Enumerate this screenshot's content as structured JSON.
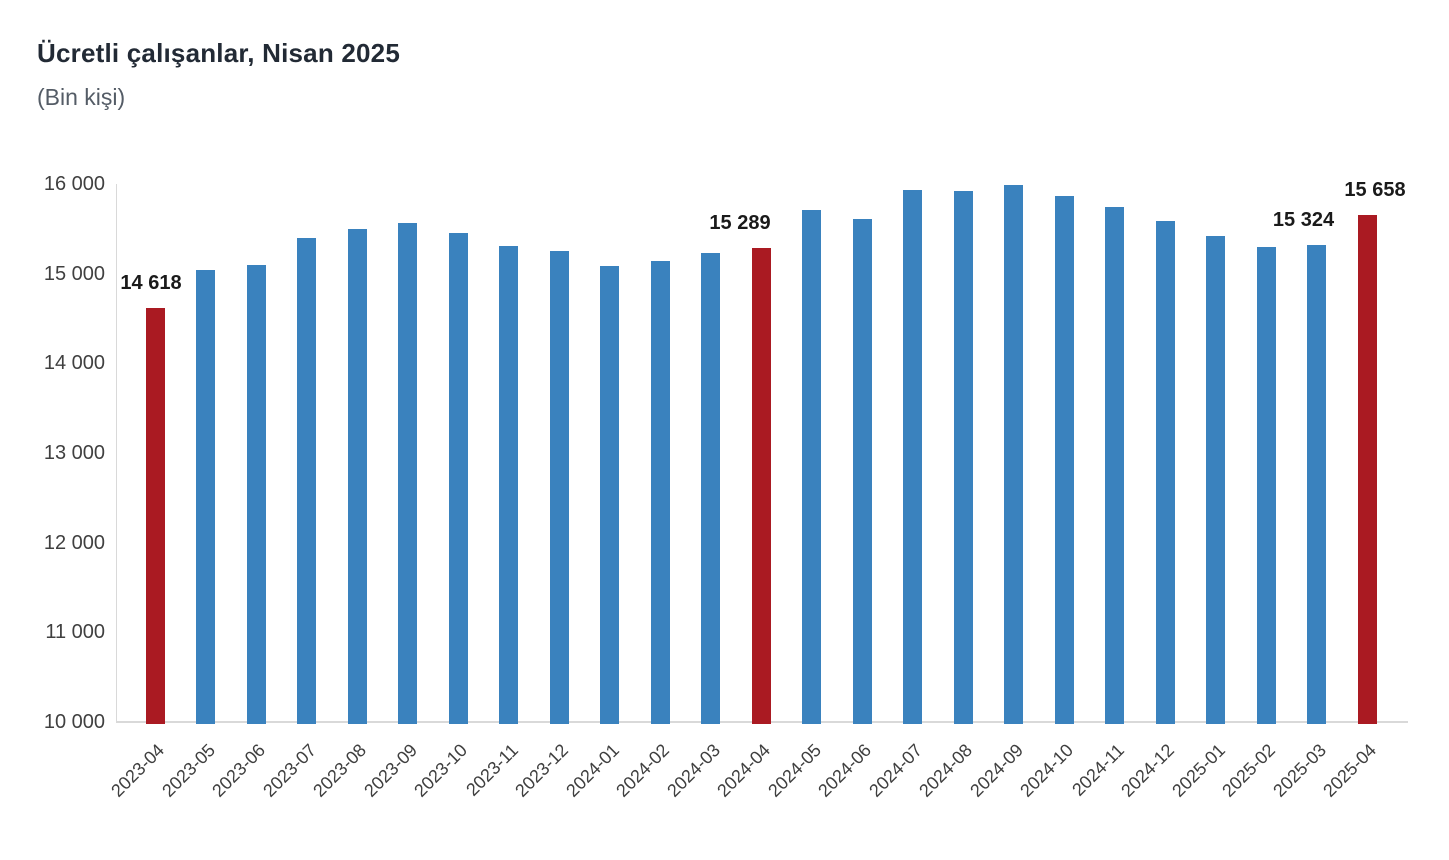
{
  "page": {
    "title": "Ücretli çalışanlar, Nisan 2025",
    "subtitle": "(Bin kişi)"
  },
  "chart_data": {
    "type": "bar",
    "title": "Ücretli çalışanlar, Nisan 2025",
    "subtitle": "(Bin kişi)",
    "unit": "Bin kişi",
    "categories": [
      "2023-04",
      "2023-05",
      "2023-06",
      "2023-07",
      "2023-08",
      "2023-09",
      "2023-10",
      "2023-11",
      "2023-12",
      "2024-01",
      "2024-02",
      "2024-03",
      "2024-04",
      "2024-05",
      "2024-06",
      "2024-07",
      "2024-08",
      "2024-09",
      "2024-10",
      "2024-11",
      "2024-12",
      "2025-01",
      "2025-02",
      "2025-03",
      "2025-04"
    ],
    "values": [
      14618,
      15045,
      15095,
      15395,
      15495,
      15570,
      15455,
      15310,
      15255,
      15080,
      15145,
      15225,
      15289,
      15715,
      15615,
      15930,
      15920,
      15990,
      15865,
      15745,
      15590,
      15420,
      15300,
      15324,
      15658
    ],
    "highlighted_categories": [
      "2023-04",
      "2024-04",
      "2025-04"
    ],
    "data_labels": [
      {
        "category": "2023-04",
        "text": "14 618"
      },
      {
        "category": "2024-04",
        "text": "15 289"
      },
      {
        "category": "2025-03",
        "text": "15 324"
      },
      {
        "category": "2025-04",
        "text": "15 658"
      }
    ],
    "colors": {
      "bar_default": "#3a82be",
      "bar_highlight": "#aa1a22",
      "axis_line": "#d9d9d9",
      "tick_text": "#404040",
      "data_label_text": "#1a1a1a"
    },
    "y_axis": {
      "min": 10000,
      "max": 16000,
      "step": 1000,
      "tick_labels": [
        "16 000",
        "15 000",
        "14 000",
        "13 000",
        "12 000",
        "11 000",
        "10 000"
      ]
    },
    "x_axis": {
      "tick_rotation_deg": -45
    },
    "grid": false,
    "legend": false
  }
}
